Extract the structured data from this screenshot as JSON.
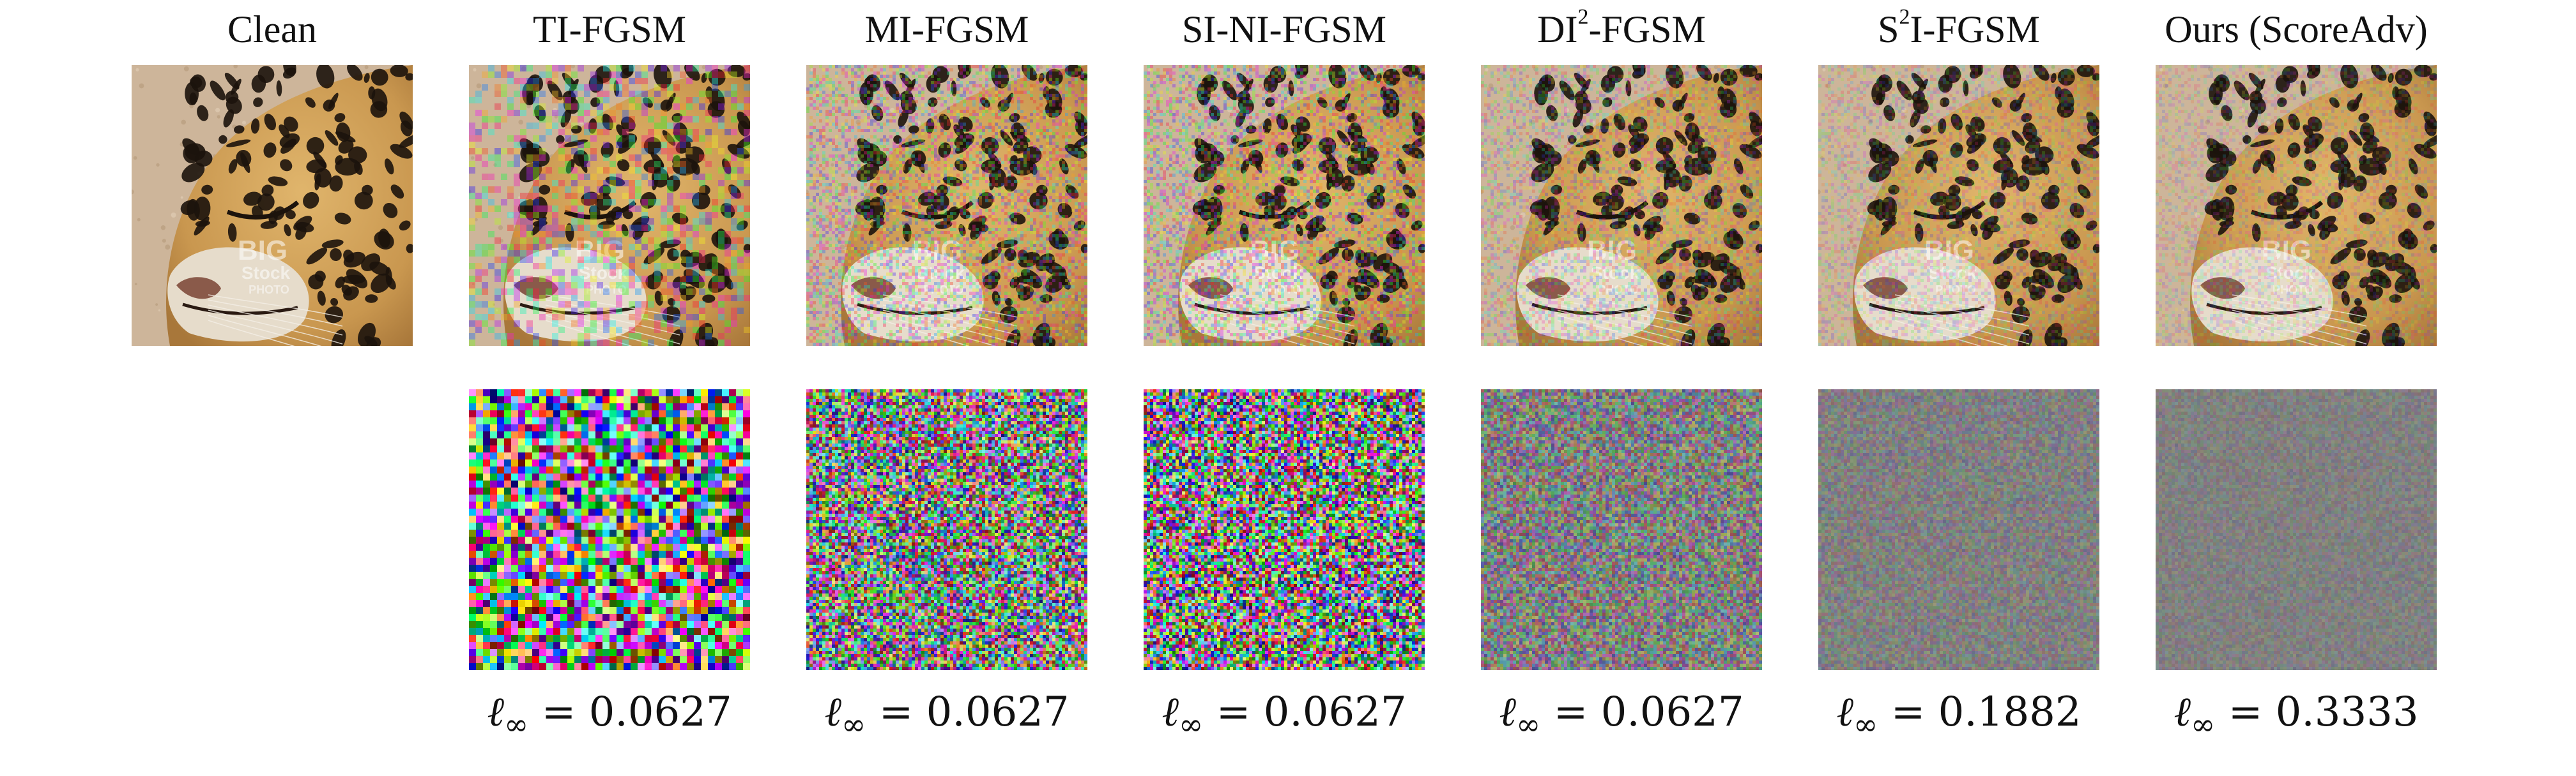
{
  "columns": [
    {
      "title_main": "Clean",
      "title_sup": "",
      "title_rest": "",
      "has_perturbation": false,
      "norm_value": "",
      "noise_level": 0
    },
    {
      "title_main": "TI-FGSM",
      "title_sup": "",
      "title_rest": "",
      "has_perturbation": true,
      "norm_value": "0.0627",
      "noise_level": 1.0
    },
    {
      "title_main": "MI-FGSM",
      "title_sup": "",
      "title_rest": "",
      "has_perturbation": true,
      "norm_value": "0.0627",
      "noise_level": 0.85
    },
    {
      "title_main": "SI-NI-FGSM",
      "title_sup": "",
      "title_rest": "",
      "has_perturbation": true,
      "norm_value": "0.0627",
      "noise_level": 0.9
    },
    {
      "title_main": "DI",
      "title_sup": "2",
      "title_rest": "-FGSM",
      "has_perturbation": true,
      "norm_value": "0.0627",
      "noise_level": 0.45
    },
    {
      "title_main": "S",
      "title_sup": "2",
      "title_rest": "I-FGSM",
      "has_perturbation": true,
      "norm_value": "0.1882",
      "noise_level": 0.18
    },
    {
      "title_main": "Ours (ScoreAdv)",
      "title_sup": "",
      "title_rest": "",
      "has_perturbation": true,
      "norm_value": "0.3333",
      "noise_level": 0.08
    }
  ],
  "norm_label": {
    "ell": "ℓ",
    "sub": "∞",
    "eq": "="
  },
  "watermark": {
    "line1": "BIG",
    "line2": "Stock",
    "line3": "PHOTO"
  },
  "colors": {
    "fur": "#c9974f",
    "spot": "#1c130c",
    "muzzle": "#e6dccb",
    "ground": "#cdb59a",
    "noise_bg": "#808080"
  }
}
